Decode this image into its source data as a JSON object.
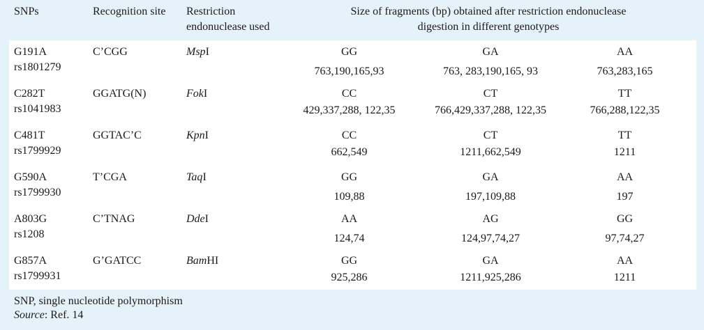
{
  "table": {
    "headers": {
      "snps": "SNPs",
      "site": "Recognition site",
      "enzyme_line1": "Restriction",
      "enzyme_line2": "endonuclease used",
      "fragments_line1": "Size of fragments (bp) obtained after restriction endonuclease",
      "fragments_line2": "digestion in different genotypes"
    },
    "rows": [
      {
        "snp": "G191A",
        "rs": "rs1801279",
        "site": "C’CGG",
        "enzyme_italic": "Msp",
        "enzyme_suffix": "I",
        "g1": "GG",
        "g2": "GA",
        "g3": "AA",
        "f1": "763,190,165,93",
        "f2": "763, 283,190,165, 93",
        "f3": "763,283,165"
      },
      {
        "snp": "C282T",
        "rs": "rs1041983",
        "site": "GGATG(N)",
        "enzyme_italic": "Fok",
        "enzyme_suffix": "I",
        "g1": "CC",
        "g2": "CT",
        "g3": "TT",
        "f1": "429,337,288, 122,35",
        "f2": "766,429,337,288, 122,35",
        "f3": "766,288,122,35"
      },
      {
        "snp": "C481T",
        "rs": "rs1799929",
        "site": "GGTAC’C",
        "enzyme_italic": "Kpn",
        "enzyme_suffix": "I",
        "g1": "CC",
        "g2": "CT",
        "g3": "TT",
        "f1": "662,549",
        "f2": "1211,662,549",
        "f3": "1211"
      },
      {
        "snp": "G590A",
        "rs": "rs1799930",
        "site": "T’CGA",
        "enzyme_italic": "Taq",
        "enzyme_suffix": "I",
        "g1": "GG",
        "g2": "GA",
        "g3": "AA",
        "f1": "109,88",
        "f2": "197,109,88",
        "f3": "197"
      },
      {
        "snp": "A803G",
        "rs": "rs1208",
        "site": "C’TNAG",
        "enzyme_italic": "Dde",
        "enzyme_suffix": "I",
        "g1": "AA",
        "g2": "AG",
        "g3": "GG",
        "f1": "124,74",
        "f2": "124,97,74,27",
        "f3": "97,74,27"
      },
      {
        "snp": "G857A",
        "rs": "rs1799931",
        "site": "G’GATCC",
        "enzyme_italic": "Bam",
        "enzyme_suffix": "HI",
        "g1": "GG",
        "g2": "GA",
        "g3": "AA",
        "f1": "925,286",
        "f2": "1211,925,286",
        "f3": "1211"
      }
    ],
    "footnote": "SNP, single nucleotide polymorphism",
    "source_label": "Source",
    "source_text": ": Ref. 14"
  }
}
